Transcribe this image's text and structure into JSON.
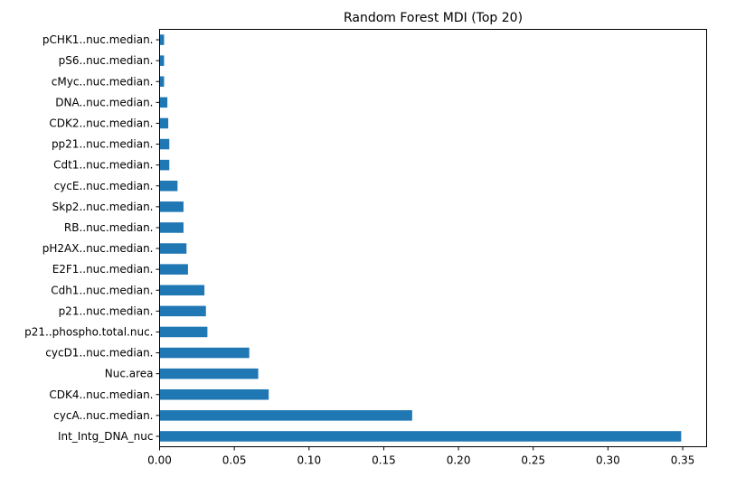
{
  "chart_data": {
    "type": "bar",
    "orientation": "horizontal",
    "title": "Random Forest MDI (Top 20)",
    "xlabel": "",
    "ylabel": "",
    "xlim": [
      0,
      0.366
    ],
    "x_ticks": [
      "0.00",
      "0.05",
      "0.10",
      "0.15",
      "0.20",
      "0.25",
      "0.30",
      "0.35"
    ],
    "x_tick_values": [
      0,
      0.05,
      0.1,
      0.15,
      0.2,
      0.25,
      0.3,
      0.35
    ],
    "grid": false,
    "bar_color": "#1f77b4",
    "categories": [
      "Int_Intg_DNA_nuc",
      "cycA..nuc.median.",
      "CDK4..nuc.median.",
      "Nuc.area",
      "cycD1..nuc.median.",
      "p21..phospho.total.nuc.",
      "p21..nuc.median.",
      "Cdh1..nuc.median.",
      "E2F1..nuc.median.",
      "pH2AX..nuc.median.",
      "RB..nuc.median.",
      "Skp2..nuc.median.",
      "cycE..nuc.median.",
      "Cdt1..nuc.median.",
      "pp21..nuc.median.",
      "CDK2..nuc.median.",
      "DNA..nuc.median.",
      "cMyc..nuc.median.",
      "pS6..nuc.median.",
      "pCHK1..nuc.median."
    ],
    "values": [
      0.349,
      0.169,
      0.073,
      0.066,
      0.06,
      0.032,
      0.031,
      0.03,
      0.019,
      0.018,
      0.016,
      0.016,
      0.012,
      0.0065,
      0.0065,
      0.0058,
      0.0052,
      0.003,
      0.003,
      0.003
    ]
  }
}
